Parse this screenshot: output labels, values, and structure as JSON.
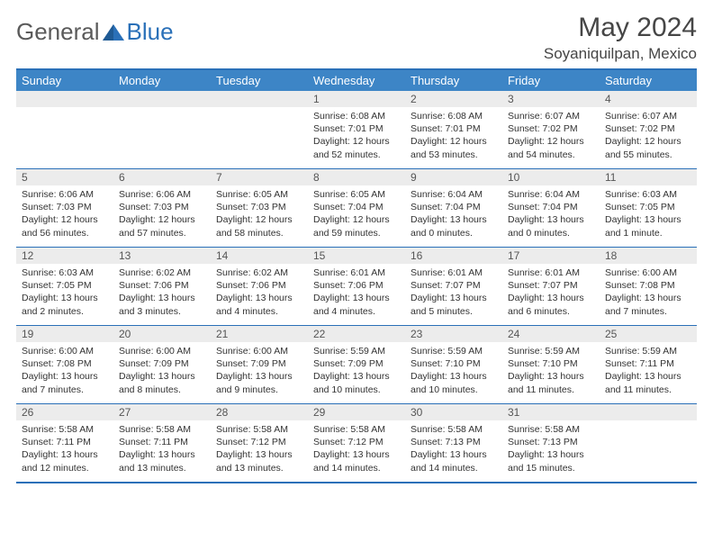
{
  "brand": {
    "name1": "General",
    "name2": "Blue"
  },
  "title": "May 2024",
  "location": "Soyaniquilpan, Mexico",
  "colors": {
    "header_bg": "#3d85c6",
    "border": "#2a70b8",
    "daynum_bg": "#ececec",
    "text": "#333333",
    "title_text": "#464646"
  },
  "weekdays": [
    "Sunday",
    "Monday",
    "Tuesday",
    "Wednesday",
    "Thursday",
    "Friday",
    "Saturday"
  ],
  "weeks": [
    [
      {
        "n": "",
        "sr": "",
        "ss": "",
        "dl": ""
      },
      {
        "n": "",
        "sr": "",
        "ss": "",
        "dl": ""
      },
      {
        "n": "",
        "sr": "",
        "ss": "",
        "dl": ""
      },
      {
        "n": "1",
        "sr": "Sunrise: 6:08 AM",
        "ss": "Sunset: 7:01 PM",
        "dl": "Daylight: 12 hours and 52 minutes."
      },
      {
        "n": "2",
        "sr": "Sunrise: 6:08 AM",
        "ss": "Sunset: 7:01 PM",
        "dl": "Daylight: 12 hours and 53 minutes."
      },
      {
        "n": "3",
        "sr": "Sunrise: 6:07 AM",
        "ss": "Sunset: 7:02 PM",
        "dl": "Daylight: 12 hours and 54 minutes."
      },
      {
        "n": "4",
        "sr": "Sunrise: 6:07 AM",
        "ss": "Sunset: 7:02 PM",
        "dl": "Daylight: 12 hours and 55 minutes."
      }
    ],
    [
      {
        "n": "5",
        "sr": "Sunrise: 6:06 AM",
        "ss": "Sunset: 7:03 PM",
        "dl": "Daylight: 12 hours and 56 minutes."
      },
      {
        "n": "6",
        "sr": "Sunrise: 6:06 AM",
        "ss": "Sunset: 7:03 PM",
        "dl": "Daylight: 12 hours and 57 minutes."
      },
      {
        "n": "7",
        "sr": "Sunrise: 6:05 AM",
        "ss": "Sunset: 7:03 PM",
        "dl": "Daylight: 12 hours and 58 minutes."
      },
      {
        "n": "8",
        "sr": "Sunrise: 6:05 AM",
        "ss": "Sunset: 7:04 PM",
        "dl": "Daylight: 12 hours and 59 minutes."
      },
      {
        "n": "9",
        "sr": "Sunrise: 6:04 AM",
        "ss": "Sunset: 7:04 PM",
        "dl": "Daylight: 13 hours and 0 minutes."
      },
      {
        "n": "10",
        "sr": "Sunrise: 6:04 AM",
        "ss": "Sunset: 7:04 PM",
        "dl": "Daylight: 13 hours and 0 minutes."
      },
      {
        "n": "11",
        "sr": "Sunrise: 6:03 AM",
        "ss": "Sunset: 7:05 PM",
        "dl": "Daylight: 13 hours and 1 minute."
      }
    ],
    [
      {
        "n": "12",
        "sr": "Sunrise: 6:03 AM",
        "ss": "Sunset: 7:05 PM",
        "dl": "Daylight: 13 hours and 2 minutes."
      },
      {
        "n": "13",
        "sr": "Sunrise: 6:02 AM",
        "ss": "Sunset: 7:06 PM",
        "dl": "Daylight: 13 hours and 3 minutes."
      },
      {
        "n": "14",
        "sr": "Sunrise: 6:02 AM",
        "ss": "Sunset: 7:06 PM",
        "dl": "Daylight: 13 hours and 4 minutes."
      },
      {
        "n": "15",
        "sr": "Sunrise: 6:01 AM",
        "ss": "Sunset: 7:06 PM",
        "dl": "Daylight: 13 hours and 4 minutes."
      },
      {
        "n": "16",
        "sr": "Sunrise: 6:01 AM",
        "ss": "Sunset: 7:07 PM",
        "dl": "Daylight: 13 hours and 5 minutes."
      },
      {
        "n": "17",
        "sr": "Sunrise: 6:01 AM",
        "ss": "Sunset: 7:07 PM",
        "dl": "Daylight: 13 hours and 6 minutes."
      },
      {
        "n": "18",
        "sr": "Sunrise: 6:00 AM",
        "ss": "Sunset: 7:08 PM",
        "dl": "Daylight: 13 hours and 7 minutes."
      }
    ],
    [
      {
        "n": "19",
        "sr": "Sunrise: 6:00 AM",
        "ss": "Sunset: 7:08 PM",
        "dl": "Daylight: 13 hours and 7 minutes."
      },
      {
        "n": "20",
        "sr": "Sunrise: 6:00 AM",
        "ss": "Sunset: 7:09 PM",
        "dl": "Daylight: 13 hours and 8 minutes."
      },
      {
        "n": "21",
        "sr": "Sunrise: 6:00 AM",
        "ss": "Sunset: 7:09 PM",
        "dl": "Daylight: 13 hours and 9 minutes."
      },
      {
        "n": "22",
        "sr": "Sunrise: 5:59 AM",
        "ss": "Sunset: 7:09 PM",
        "dl": "Daylight: 13 hours and 10 minutes."
      },
      {
        "n": "23",
        "sr": "Sunrise: 5:59 AM",
        "ss": "Sunset: 7:10 PM",
        "dl": "Daylight: 13 hours and 10 minutes."
      },
      {
        "n": "24",
        "sr": "Sunrise: 5:59 AM",
        "ss": "Sunset: 7:10 PM",
        "dl": "Daylight: 13 hours and 11 minutes."
      },
      {
        "n": "25",
        "sr": "Sunrise: 5:59 AM",
        "ss": "Sunset: 7:11 PM",
        "dl": "Daylight: 13 hours and 11 minutes."
      }
    ],
    [
      {
        "n": "26",
        "sr": "Sunrise: 5:58 AM",
        "ss": "Sunset: 7:11 PM",
        "dl": "Daylight: 13 hours and 12 minutes."
      },
      {
        "n": "27",
        "sr": "Sunrise: 5:58 AM",
        "ss": "Sunset: 7:11 PM",
        "dl": "Daylight: 13 hours and 13 minutes."
      },
      {
        "n": "28",
        "sr": "Sunrise: 5:58 AM",
        "ss": "Sunset: 7:12 PM",
        "dl": "Daylight: 13 hours and 13 minutes."
      },
      {
        "n": "29",
        "sr": "Sunrise: 5:58 AM",
        "ss": "Sunset: 7:12 PM",
        "dl": "Daylight: 13 hours and 14 minutes."
      },
      {
        "n": "30",
        "sr": "Sunrise: 5:58 AM",
        "ss": "Sunset: 7:13 PM",
        "dl": "Daylight: 13 hours and 14 minutes."
      },
      {
        "n": "31",
        "sr": "Sunrise: 5:58 AM",
        "ss": "Sunset: 7:13 PM",
        "dl": "Daylight: 13 hours and 15 minutes."
      },
      {
        "n": "",
        "sr": "",
        "ss": "",
        "dl": ""
      }
    ]
  ]
}
